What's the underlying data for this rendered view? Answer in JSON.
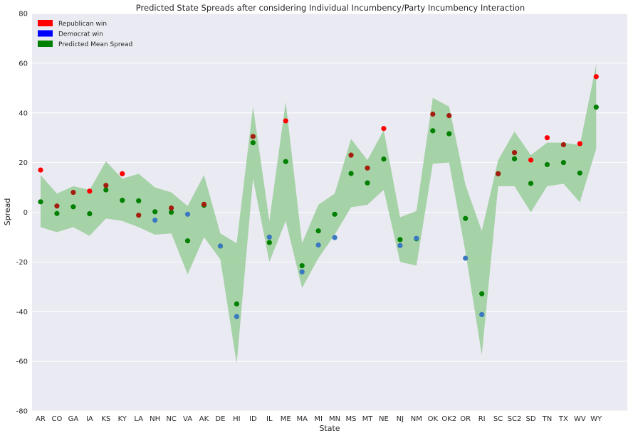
{
  "chart_data": {
    "type": "scatter",
    "title": "Predicted State Spreads after considering Individual Incumbency/Party Incumbency Interaction",
    "xlabel": "State",
    "ylabel": "Spread",
    "ylim": [
      -80,
      80
    ],
    "yticks": [
      -80,
      -60,
      -40,
      -20,
      0,
      20,
      40,
      60,
      80
    ],
    "grid": true,
    "legend_position": "top-left",
    "colors": {
      "republican": "#ff0000",
      "democrat": "#0000ff",
      "predicted": "#008000",
      "republican_point": "#a31e0e",
      "democrat_point": "#3a78c2",
      "band": "#9fcf9f",
      "background": "#eaeaf2",
      "grid": "#ffffff"
    },
    "legend": [
      {
        "label": "Republican win",
        "color": "#ff0000"
      },
      {
        "label": "Democrat win",
        "color": "#0000ff"
      },
      {
        "label": "Predicted Mean Spread",
        "color": "#008000"
      }
    ],
    "categories": [
      "AR",
      "CO",
      "GA",
      "IA",
      "KS",
      "KY",
      "LA",
      "NH",
      "NC",
      "VA",
      "AK",
      "DE",
      "HI",
      "ID",
      "IL",
      "ME",
      "MA",
      "MI",
      "MN",
      "MS",
      "MT",
      "NE",
      "NJ",
      "NM",
      "OK",
      "OK2",
      "OR",
      "RI",
      "SC",
      "SC2",
      "SD",
      "TN",
      "TX",
      "WV",
      "WY"
    ],
    "actual": [
      17.0,
      2.5,
      8.0,
      8.5,
      10.8,
      15.5,
      -1.2,
      -3.2,
      1.7,
      -0.8,
      3.2,
      -13.6,
      -42.0,
      30.5,
      -10.0,
      36.8,
      -24.0,
      -13.2,
      -10.2,
      23.0,
      17.8,
      33.7,
      -13.4,
      -10.5,
      39.5,
      38.9,
      -18.5,
      -41.2,
      15.5,
      24.0,
      21.0,
      30.0,
      27.2,
      27.6,
      54.6
    ],
    "actual_party": [
      "R",
      "R",
      "R",
      "R",
      "R",
      "R",
      "R",
      "D",
      "R",
      "D",
      "R",
      "D",
      "D",
      "R",
      "D",
      "R",
      "D",
      "D",
      "D",
      "R",
      "R",
      "R",
      "D",
      "D",
      "R",
      "R",
      "D",
      "D",
      "R",
      "R",
      "R",
      "R",
      "R",
      "R",
      "R"
    ],
    "predicted": [
      4.2,
      -0.5,
      2.2,
      -0.6,
      9.0,
      4.8,
      4.6,
      0.2,
      0.0,
      -11.5,
      2.8,
      -13.6,
      -36.9,
      28.0,
      -12.2,
      20.4,
      -21.5,
      -7.5,
      -0.8,
      15.6,
      11.8,
      21.4,
      -11.0,
      -10.7,
      32.8,
      31.6,
      -2.5,
      -32.8,
      15.5,
      21.5,
      11.6,
      19.2,
      20.0,
      15.8,
      42.3
    ],
    "band_upper": [
      15.0,
      7.5,
      10.5,
      9.0,
      20.5,
      13.5,
      15.5,
      10.0,
      8.0,
      2.5,
      15.0,
      -8.5,
      -12.5,
      42.5,
      -3.5,
      44.5,
      -12.5,
      3.0,
      7.5,
      29.5,
      21.0,
      33.0,
      -2.0,
      0.5,
      46.0,
      42.5,
      11.0,
      -7.5,
      21.0,
      32.5,
      23.0,
      28.0,
      28.0,
      27.0,
      59.5
    ],
    "band_lower": [
      -6.0,
      -8.0,
      -6.0,
      -9.5,
      -2.5,
      -3.5,
      -6.0,
      -9.0,
      -8.5,
      -25.0,
      -10.0,
      -19.0,
      -61.0,
      13.5,
      -20.0,
      -3.5,
      -30.5,
      -18.5,
      -9.0,
      2.0,
      3.0,
      9.0,
      -20.0,
      -21.5,
      19.5,
      20.0,
      -16.0,
      -57.5,
      10.5,
      10.5,
      0.0,
      10.5,
      11.5,
      4.0,
      25.5
    ]
  }
}
